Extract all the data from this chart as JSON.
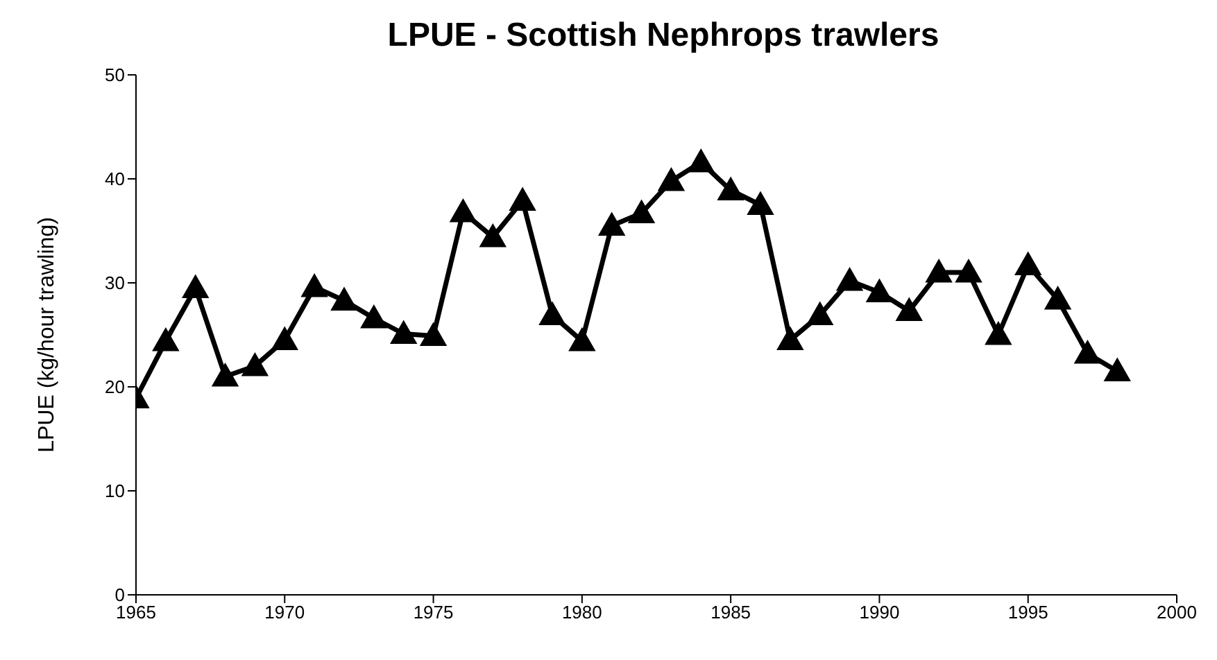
{
  "chart_data": {
    "type": "line",
    "title": "LPUE - Scottish Nephrops trawlers",
    "ylabel": "LPUE (kg/hour trawling)",
    "x": [
      1965,
      1966,
      1967,
      1968,
      1969,
      1970,
      1971,
      1972,
      1973,
      1974,
      1975,
      1976,
      1977,
      1978,
      1979,
      1980,
      1981,
      1982,
      1983,
      1984,
      1985,
      1986,
      1987,
      1988,
      1989,
      1990,
      1991,
      1992,
      1993,
      1994,
      1995,
      1996,
      1997,
      1998
    ],
    "series": [
      {
        "color": "#000000",
        "values": [
          18.9,
          24.4,
          29.5,
          21,
          22,
          24.5,
          29.6,
          28.3,
          26.6,
          25.1,
          24.9,
          36.8,
          34.4,
          37.9,
          26.9,
          24.4,
          35.5,
          36.7,
          39.8,
          41.6,
          38.9,
          37.5,
          24.5,
          26.9,
          30.2,
          29.1,
          27.3,
          31,
          31,
          25,
          31.7,
          28.4,
          23.2,
          21.5
        ]
      }
    ],
    "xlim": [
      1965,
      2000
    ],
    "xticks": [
      1965,
      1970,
      1975,
      1980,
      1985,
      1990,
      1995,
      2000
    ],
    "ylim": [
      0,
      50
    ],
    "yticks": [
      0,
      10,
      20,
      30,
      40,
      50
    ],
    "grid": false,
    "legend": false,
    "marker": "triangle",
    "line_style": "solid"
  }
}
